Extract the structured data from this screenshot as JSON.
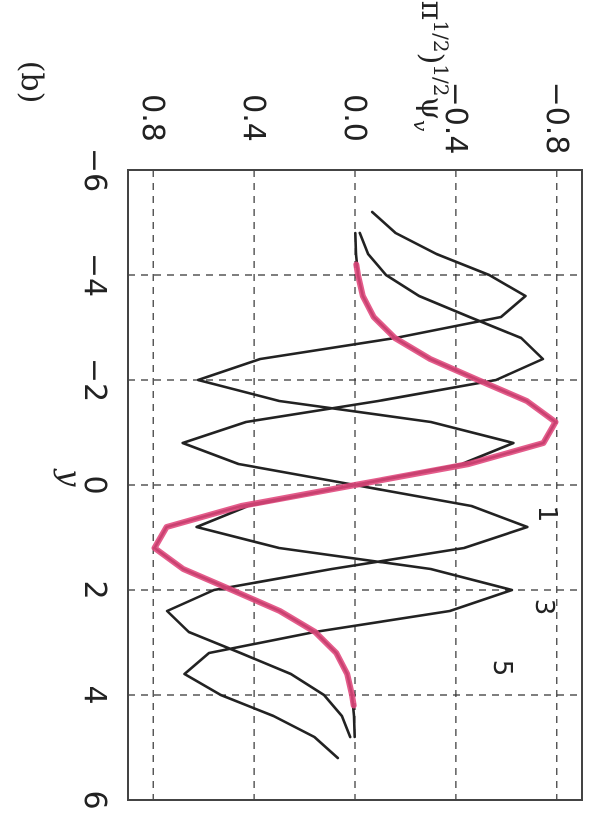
{
  "chart_data": {
    "type": "line",
    "panel_label": "(b)",
    "title": "",
    "xlabel": "y",
    "ylabel_base": "(απ",
    "ylabel_exp1": "1/2",
    "ylabel_mid": ")",
    "ylabel_exp2": "1/2",
    "ylabel_psi": "ψ",
    "ylabel_sub": "v",
    "xlim": [
      -6,
      6
    ],
    "ylim": [
      -0.9,
      0.9
    ],
    "x_ticks": [
      -6,
      -4,
      -2,
      0,
      2,
      4,
      6
    ],
    "x_tick_labels": [
      "−6",
      "−4",
      "−2",
      "0",
      "2",
      "4",
      "6"
    ],
    "y_ticks": [
      -0.8,
      -0.4,
      0.0,
      0.4,
      0.8
    ],
    "y_tick_labels": [
      "−0.8",
      "−0.4",
      "0.0",
      "0.4",
      "0.8"
    ],
    "grid": true,
    "orientation": "rotated 90° clockwise",
    "series": [
      {
        "label": "1",
        "quantum_number": 1,
        "color": "#222222",
        "x": [
          -4.8,
          -4.4,
          -4.0,
          -3.6,
          -3.2,
          -2.8,
          -2.4,
          -2.0,
          -1.6,
          -1.2,
          -0.8,
          -0.4,
          0,
          0.4,
          0.8,
          1.2,
          1.6,
          2.0,
          2.4,
          2.8,
          3.2,
          3.6,
          4.0,
          4.4,
          4.8
        ],
        "y": [
          -0.001,
          -0.004,
          -0.012,
          -0.031,
          -0.074,
          -0.158,
          -0.298,
          -0.488,
          -0.681,
          -0.795,
          -0.747,
          -0.451,
          0,
          0.451,
          0.747,
          0.795,
          0.681,
          0.488,
          0.298,
          0.158,
          0.074,
          0.031,
          0.012,
          0.004,
          0.001
        ]
      },
      {
        "label": "3",
        "quantum_number": 3,
        "color": "#222222",
        "x": [
          -4.8,
          -4.4,
          -4.0,
          -3.6,
          -3.2,
          -2.8,
          -2.4,
          -2.0,
          -1.6,
          -1.2,
          -0.8,
          -0.4,
          0,
          0.4,
          0.8,
          1.2,
          1.6,
          2.0,
          2.4,
          2.8,
          3.2,
          3.6,
          4.0,
          4.4,
          4.8
        ],
        "y": [
          -0.019,
          -0.052,
          -0.123,
          -0.254,
          -0.454,
          -0.659,
          -0.745,
          -0.559,
          -0.092,
          0.432,
          0.683,
          0.462,
          0,
          -0.462,
          -0.683,
          -0.432,
          0.092,
          0.559,
          0.745,
          0.659,
          0.454,
          0.254,
          0.123,
          0.052,
          0.019
        ]
      },
      {
        "label": "5",
        "quantum_number": 5,
        "color": "#222222",
        "x": [
          -5.2,
          -4.8,
          -4.4,
          -4.0,
          -3.6,
          -3.2,
          -2.8,
          -2.4,
          -2.0,
          -1.6,
          -1.2,
          -0.8,
          -0.4,
          0,
          0.4,
          0.8,
          1.2,
          1.6,
          2.0,
          2.4,
          2.8,
          3.2,
          3.6,
          4.0,
          4.4,
          4.8,
          5.2
        ],
        "y": [
          -0.068,
          -0.161,
          -0.323,
          -0.532,
          -0.676,
          -0.579,
          -0.16,
          0.376,
          0.622,
          0.3,
          -0.301,
          -0.628,
          -0.423,
          0,
          0.423,
          0.628,
          0.301,
          -0.3,
          -0.622,
          -0.376,
          0.16,
          0.579,
          0.676,
          0.532,
          0.323,
          0.161,
          0.068
        ]
      },
      {
        "label": "",
        "color": "#e0457b",
        "x": [
          -4.2,
          -4.0,
          -3.6,
          -3.2,
          -2.8,
          -2.4,
          -2.0,
          -1.6,
          -1.2,
          -0.8,
          -0.4,
          0,
          0.4,
          0.8,
          1.2,
          1.6,
          2.0,
          2.4,
          2.8,
          3.2,
          3.6,
          4.0,
          4.2
        ],
        "y": [
          -0.005,
          -0.012,
          -0.031,
          -0.074,
          -0.158,
          -0.298,
          -0.488,
          -0.681,
          -0.795,
          -0.747,
          -0.451,
          0,
          0.451,
          0.747,
          0.795,
          0.681,
          0.488,
          0.298,
          0.158,
          0.074,
          0.031,
          0.012,
          0.005
        ]
      }
    ]
  }
}
